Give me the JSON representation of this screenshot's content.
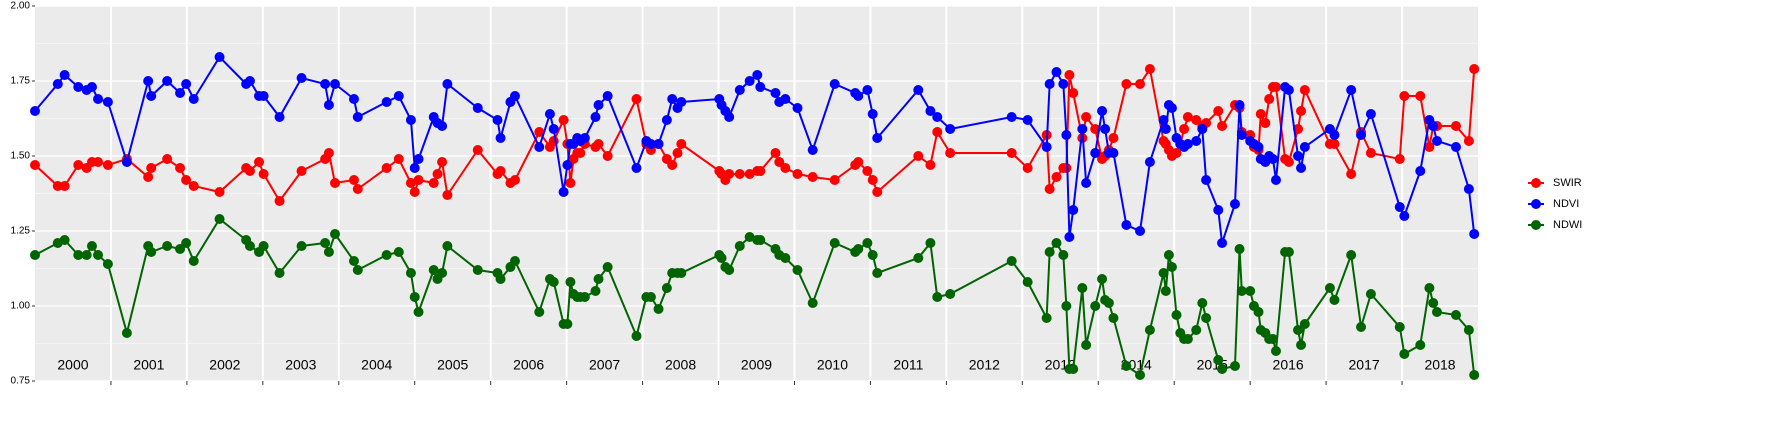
{
  "chart_data": {
    "type": "line",
    "x": [
      2000.0,
      2000.3,
      2000.39,
      2000.57,
      2000.68,
      2000.75,
      2000.83,
      2000.96,
      2001.21,
      2001.49,
      2001.53,
      2001.74,
      2001.91,
      2001.99,
      2002.09,
      2002.43,
      2002.78,
      2002.83,
      2002.95,
      2003.01,
      2003.22,
      2003.51,
      2003.82,
      2003.87,
      2003.95,
      2004.2,
      2004.25,
      2004.63,
      2004.79,
      2004.95,
      2005.0,
      2005.05,
      2005.25,
      2005.3,
      2005.36,
      2005.43,
      2005.83,
      2006.09,
      2006.13,
      2006.26,
      2006.32,
      2006.64,
      2006.78,
      2006.83,
      2006.96,
      2007.01,
      2007.05,
      2007.09,
      2007.14,
      2007.18,
      2007.24,
      2007.38,
      2007.42,
      2007.54,
      2007.92,
      2008.05,
      2008.11,
      2008.21,
      2008.32,
      2008.39,
      2008.46,
      2008.51,
      2009.01,
      2009.04,
      2009.09,
      2009.14,
      2009.28,
      2009.41,
      2009.51,
      2009.55,
      2009.75,
      2009.8,
      2009.88,
      2010.04,
      2010.24,
      2010.53,
      2010.8,
      2010.84,
      2010.96,
      2011.03,
      2011.09,
      2011.63,
      2011.79,
      2011.88,
      2012.05,
      2012.86,
      2013.07,
      2013.32,
      2013.36,
      2013.45,
      2013.54,
      2013.58,
      2013.62,
      2013.67,
      2013.79,
      2013.84,
      2013.96,
      2014.05,
      2014.09,
      2014.14,
      2014.2,
      2014.37,
      2014.55,
      2014.68,
      2014.86,
      2014.89,
      2014.93,
      2014.97,
      2015.03,
      2015.08,
      2015.13,
      2015.18,
      2015.29,
      2015.37,
      2015.42,
      2015.58,
      2015.63,
      2015.8,
      2015.86,
      2015.89,
      2016.0,
      2016.05,
      2016.11,
      2016.14,
      2016.2,
      2016.25,
      2016.3,
      2016.34,
      2016.46,
      2016.51,
      2016.63,
      2016.67,
      2016.72,
      2017.05,
      2017.11,
      2017.33,
      2017.46,
      2017.59,
      2017.97,
      2018.03,
      2018.24,
      2018.36,
      2018.41,
      2018.46,
      2018.71,
      2018.88,
      2018.95
    ],
    "series": [
      {
        "name": "SWIR",
        "color": "#ff0000",
        "values": [
          1.47,
          1.4,
          1.4,
          1.47,
          1.46,
          1.48,
          1.48,
          1.47,
          1.49,
          1.43,
          1.46,
          1.49,
          1.46,
          1.42,
          1.4,
          1.38,
          1.46,
          1.45,
          1.48,
          1.44,
          1.35,
          1.45,
          1.49,
          1.51,
          1.41,
          1.42,
          1.39,
          1.46,
          1.49,
          1.41,
          1.38,
          1.42,
          1.41,
          1.44,
          1.48,
          1.37,
          1.52,
          1.44,
          1.45,
          1.41,
          1.42,
          1.58,
          1.53,
          1.55,
          1.62,
          1.54,
          1.41,
          1.49,
          1.51,
          1.51,
          1.54,
          1.53,
          1.54,
          1.5,
          1.69,
          1.54,
          1.52,
          1.54,
          1.49,
          1.47,
          1.51,
          1.54,
          1.45,
          1.44,
          1.42,
          1.44,
          1.44,
          1.44,
          1.45,
          1.45,
          1.51,
          1.48,
          1.46,
          1.44,
          1.43,
          1.42,
          1.47,
          1.48,
          1.45,
          1.42,
          1.38,
          1.5,
          1.47,
          1.58,
          1.51,
          1.51,
          1.46,
          1.57,
          1.39,
          1.43,
          1.46,
          1.46,
          1.77,
          1.71,
          1.56,
          1.63,
          1.59,
          1.49,
          1.5,
          1.52,
          1.56,
          1.74,
          1.74,
          1.79,
          1.55,
          1.54,
          1.52,
          1.5,
          1.51,
          1.54,
          1.59,
          1.63,
          1.62,
          1.6,
          1.61,
          1.65,
          1.6,
          1.67,
          1.66,
          1.58,
          1.57,
          1.53,
          1.52,
          1.64,
          1.61,
          1.69,
          1.73,
          1.73,
          1.49,
          1.48,
          1.59,
          1.65,
          1.72,
          1.54,
          1.54,
          1.44,
          1.58,
          1.51,
          1.49,
          1.7,
          1.7,
          1.53,
          1.6,
          1.6,
          1.6,
          1.55,
          1.79
        ]
      },
      {
        "name": "NDVI",
        "color": "#0000ff",
        "values": [
          1.65,
          1.74,
          1.77,
          1.73,
          1.72,
          1.73,
          1.69,
          1.68,
          1.48,
          1.75,
          1.7,
          1.75,
          1.71,
          1.74,
          1.69,
          1.83,
          1.74,
          1.75,
          1.7,
          1.7,
          1.63,
          1.76,
          1.74,
          1.67,
          1.74,
          1.69,
          1.63,
          1.68,
          1.7,
          1.62,
          1.46,
          1.49,
          1.63,
          1.61,
          1.6,
          1.74,
          1.66,
          1.62,
          1.56,
          1.68,
          1.7,
          1.53,
          1.64,
          1.59,
          1.38,
          1.47,
          1.54,
          1.54,
          1.56,
          1.55,
          1.56,
          1.63,
          1.67,
          1.7,
          1.46,
          1.55,
          1.54,
          1.54,
          1.62,
          1.69,
          1.66,
          1.68,
          1.69,
          1.67,
          1.65,
          1.63,
          1.72,
          1.75,
          1.77,
          1.73,
          1.71,
          1.68,
          1.69,
          1.66,
          1.52,
          1.74,
          1.71,
          1.7,
          1.72,
          1.64,
          1.56,
          1.72,
          1.65,
          1.63,
          1.59,
          1.63,
          1.62,
          1.53,
          1.74,
          1.78,
          1.74,
          1.57,
          1.23,
          1.32,
          1.59,
          1.41,
          1.51,
          1.65,
          1.59,
          1.51,
          1.51,
          1.27,
          1.25,
          1.48,
          1.62,
          1.59,
          1.67,
          1.66,
          1.56,
          1.54,
          1.53,
          1.54,
          1.55,
          1.59,
          1.42,
          1.32,
          1.21,
          1.34,
          1.67,
          1.57,
          1.55,
          1.54,
          1.53,
          1.49,
          1.48,
          1.5,
          1.49,
          1.42,
          1.73,
          1.72,
          1.5,
          1.46,
          1.53,
          1.59,
          1.57,
          1.72,
          1.57,
          1.64,
          1.33,
          1.3,
          1.45,
          1.62,
          1.6,
          1.55,
          1.53,
          1.39,
          1.24
        ]
      },
      {
        "name": "NDWI",
        "color": "#006400",
        "values": [
          1.17,
          1.21,
          1.22,
          1.17,
          1.17,
          1.2,
          1.17,
          1.14,
          0.91,
          1.2,
          1.18,
          1.2,
          1.19,
          1.21,
          1.15,
          1.29,
          1.22,
          1.2,
          1.18,
          1.2,
          1.11,
          1.2,
          1.21,
          1.18,
          1.24,
          1.15,
          1.12,
          1.17,
          1.18,
          1.11,
          1.03,
          0.98,
          1.12,
          1.09,
          1.11,
          1.2,
          1.12,
          1.11,
          1.09,
          1.13,
          1.15,
          0.98,
          1.09,
          1.08,
          0.94,
          0.94,
          1.08,
          1.04,
          1.03,
          1.03,
          1.03,
          1.05,
          1.09,
          1.13,
          0.9,
          1.03,
          1.03,
          0.99,
          1.06,
          1.11,
          1.11,
          1.11,
          1.17,
          1.16,
          1.13,
          1.12,
          1.2,
          1.23,
          1.22,
          1.22,
          1.19,
          1.17,
          1.16,
          1.12,
          1.01,
          1.21,
          1.18,
          1.19,
          1.21,
          1.17,
          1.11,
          1.16,
          1.21,
          1.03,
          1.04,
          1.15,
          1.08,
          0.96,
          1.18,
          1.21,
          1.17,
          1.0,
          0.79,
          0.79,
          1.06,
          0.87,
          1.0,
          1.09,
          1.02,
          1.01,
          0.96,
          0.8,
          0.77,
          0.92,
          1.11,
          1.05,
          1.17,
          1.13,
          0.97,
          0.91,
          0.89,
          0.89,
          0.92,
          1.01,
          0.96,
          0.82,
          0.79,
          0.8,
          1.19,
          1.05,
          1.05,
          1.0,
          0.98,
          0.92,
          0.91,
          0.89,
          0.89,
          0.85,
          1.18,
          1.18,
          0.92,
          0.87,
          0.94,
          1.06,
          1.02,
          1.17,
          0.93,
          1.04,
          0.93,
          0.84,
          0.87,
          1.06,
          1.01,
          0.98,
          0.97,
          0.92,
          0.77
        ]
      }
    ],
    "xlim": [
      2000,
      2019
    ],
    "xticks": [
      2001,
      2002,
      2003,
      2004,
      2005,
      2006,
      2007,
      2008,
      2009,
      2010,
      2011,
      2012,
      2013,
      2014,
      2015,
      2016,
      2017,
      2018
    ],
    "ylim": [
      0.75,
      2.0
    ],
    "yticks": [
      {
        "value": 0.75,
        "label": "0.75"
      },
      {
        "value": 1.0,
        "label": "1.00"
      },
      {
        "value": 1.25,
        "label": "1.25"
      },
      {
        "value": 1.5,
        "label": "1.50"
      },
      {
        "value": 1.75,
        "label": "1.75"
      },
      {
        "value": 2.0,
        "label": "2.00"
      }
    ],
    "y_minor_grid": [
      0.875,
      1.125,
      1.375,
      1.625,
      1.875
    ],
    "annotations": [
      {
        "text": "2000",
        "x": 2000.5
      },
      {
        "text": "2001",
        "x": 2001.5
      },
      {
        "text": "2002",
        "x": 2002.5
      },
      {
        "text": "2003",
        "x": 2003.5
      },
      {
        "text": "2004",
        "x": 2004.5
      },
      {
        "text": "2005",
        "x": 2005.5
      },
      {
        "text": "2006",
        "x": 2006.5
      },
      {
        "text": "2007",
        "x": 2007.5
      },
      {
        "text": "2008",
        "x": 2008.5
      },
      {
        "text": "2009",
        "x": 2009.5
      },
      {
        "text": "2010",
        "x": 2010.5
      },
      {
        "text": "2011",
        "x": 2011.5
      },
      {
        "text": "2012",
        "x": 2012.5
      },
      {
        "text": "2013",
        "x": 2013.5
      },
      {
        "text": "2014",
        "x": 2014.5
      },
      {
        "text": "2015",
        "x": 2015.5
      },
      {
        "text": "2016",
        "x": 2016.5
      },
      {
        "text": "2017",
        "x": 2017.5
      },
      {
        "text": "2018",
        "x": 2018.5
      }
    ],
    "grid": true,
    "legend": "right"
  }
}
